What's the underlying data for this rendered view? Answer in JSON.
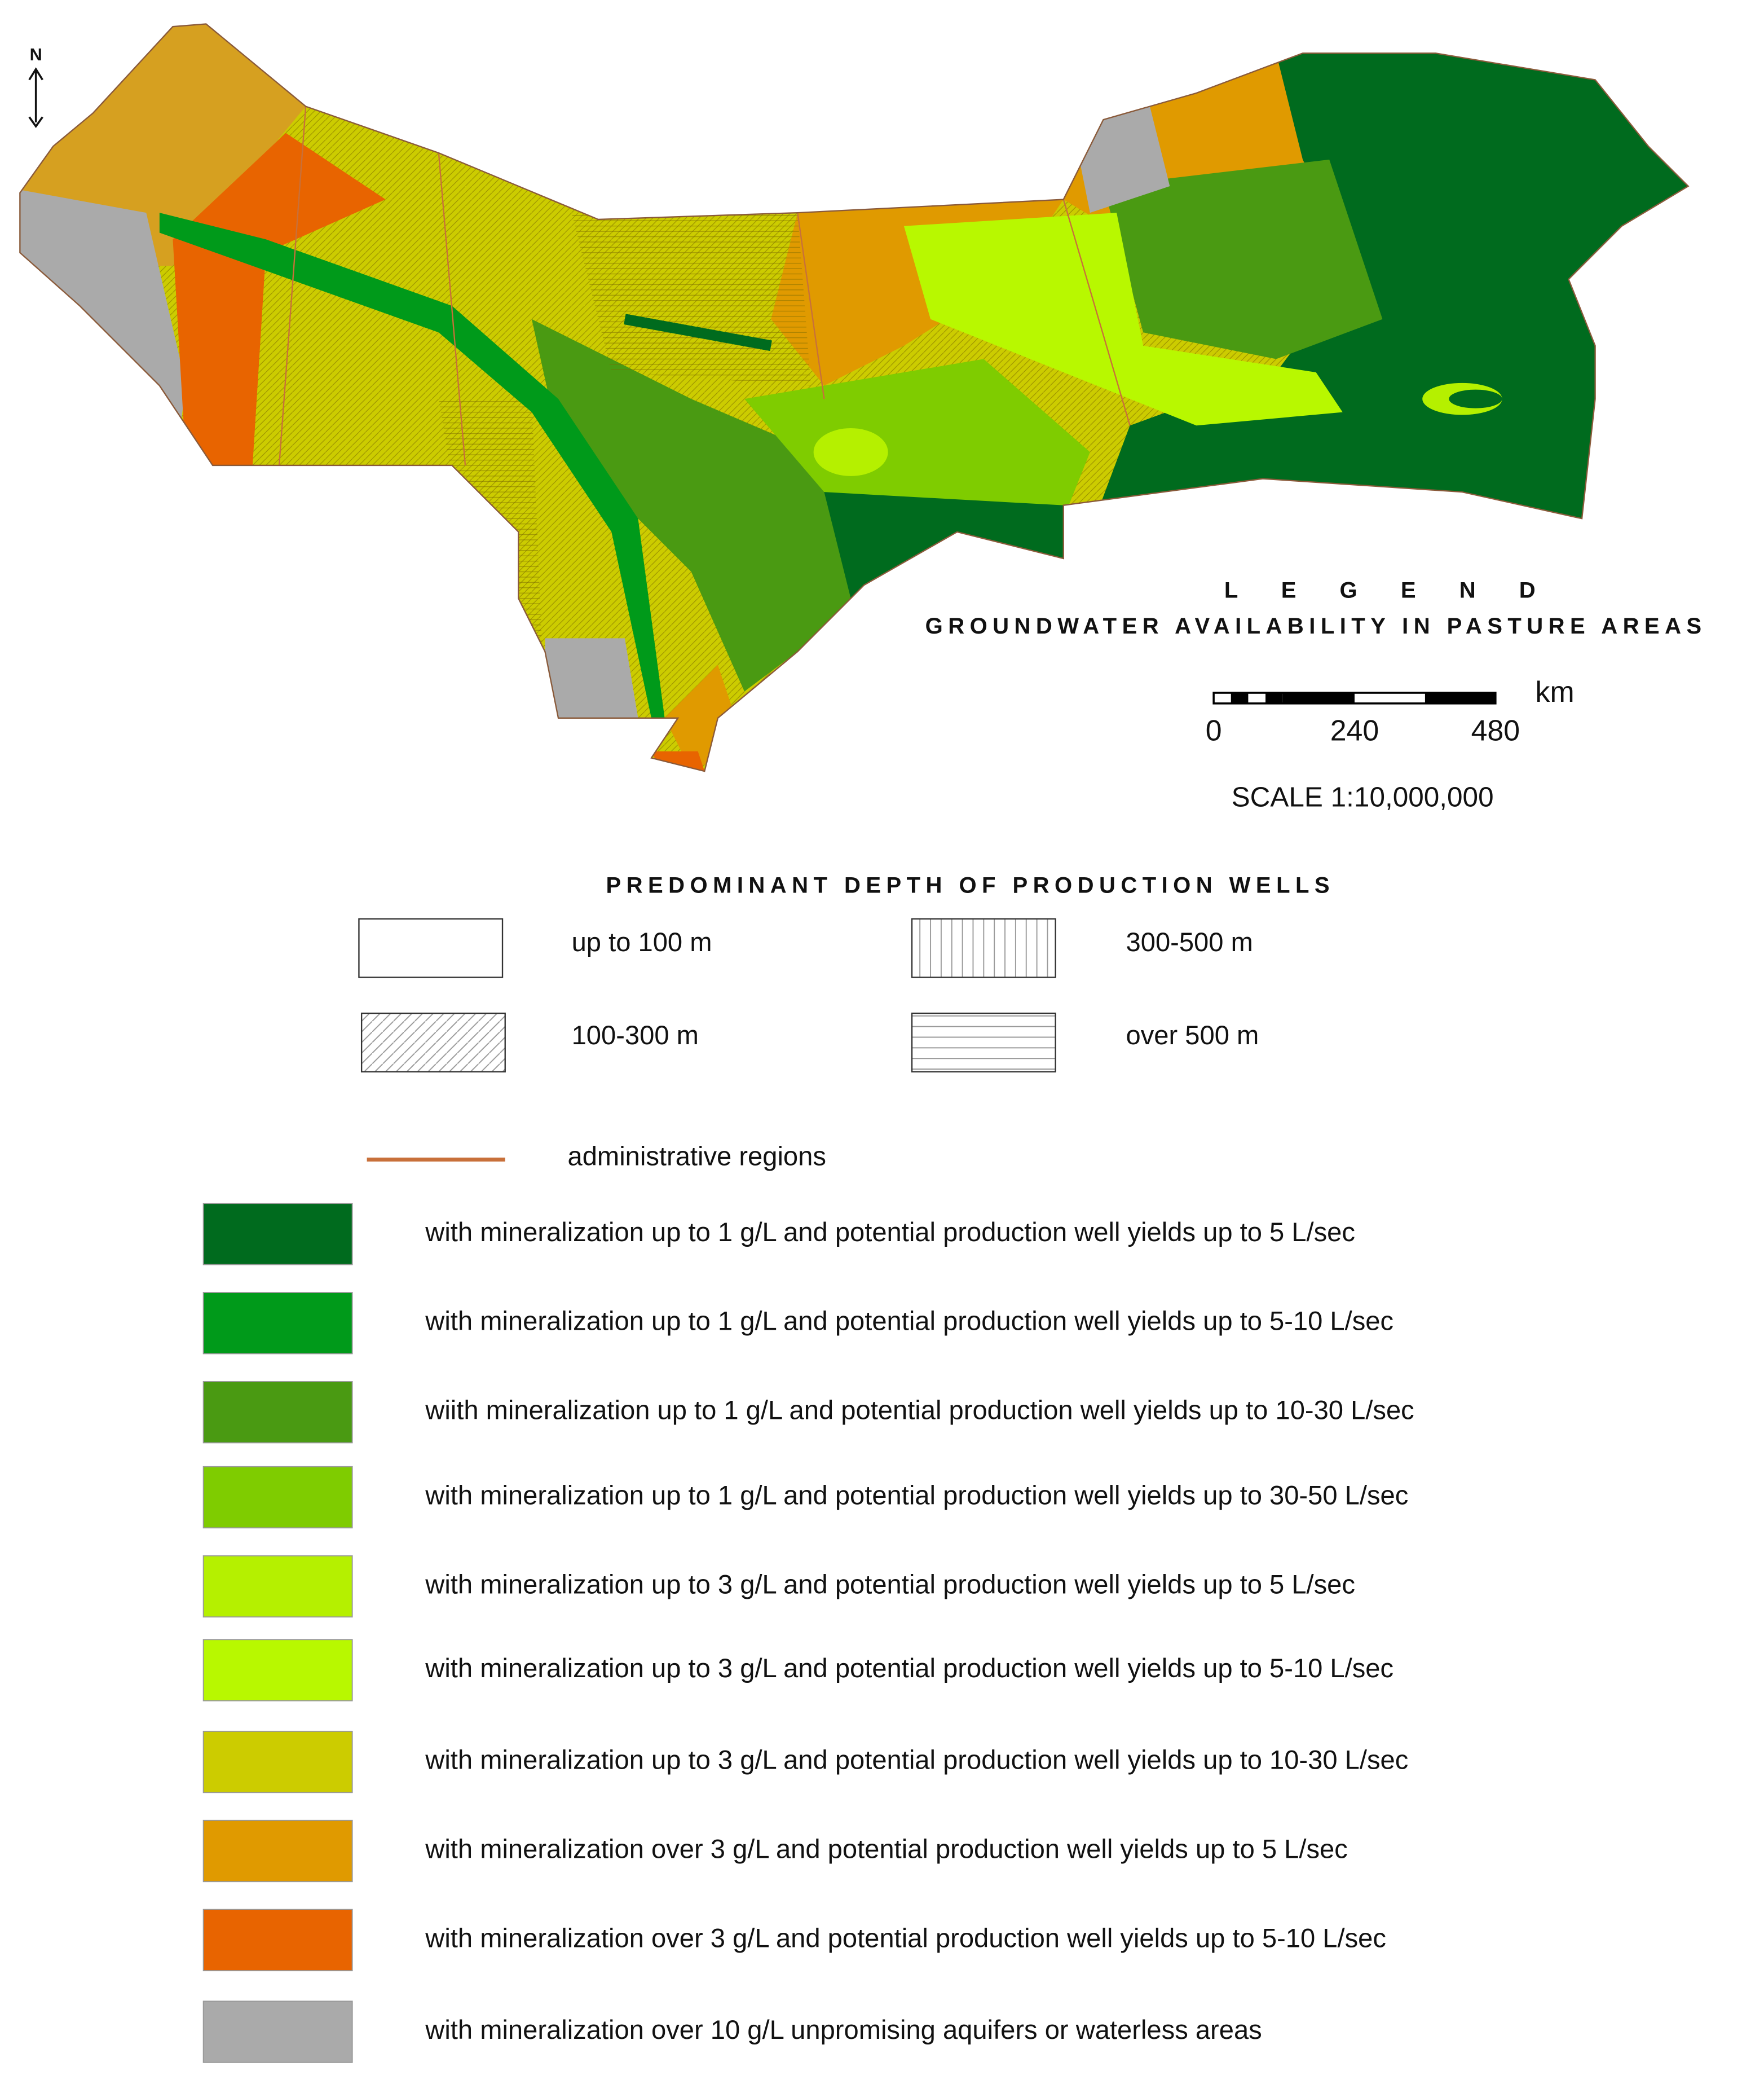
{
  "north": "N",
  "legend": {
    "title": "L E G E N D",
    "subtitle": "GROUNDWATER AVAILABILITY IN PASTURE AREAS"
  },
  "scale_bar": {
    "unit": "km",
    "ticks": [
      0,
      240,
      480
    ],
    "scale": "SCALE 1:10,000,000"
  },
  "depth": {
    "title": "PREDOMINANT DEPTH OF PRODUCTION WELLS",
    "items": [
      "up to 100 m",
      "300-500 m",
      "100-300 m",
      "over 500 m"
    ]
  },
  "admin": {
    "label": "administrative regions",
    "color": "#c8703a"
  },
  "classes": [
    {
      "label": "with mineralization up to 1 g/L and potential production well yields up to 5 L/sec",
      "color": "#006b1e"
    },
    {
      "label": "with mineralization up to 1 g/L and potential production well yields up to 5-10 L/sec",
      "color": "#009a1a"
    },
    {
      "label": "wiith mineralization up to 1 g/L and potential production well yields up to 10-30 L/sec",
      "color": "#4a9a12"
    },
    {
      "label": "with mineralization up to 1 g/L and potential production well yields up to 30-50 L/sec",
      "color": "#7fcc00"
    },
    {
      "label": "with mineralization up to 3 g/L and potential production well yields up to 5 L/sec",
      "color": "#b5f000"
    },
    {
      "label": "with mineralization up to 3 g/L and potential production well yields up to 5-10 L/sec",
      "color": "#b8f800"
    },
    {
      "label": "with mineralization up to 3 g/L and potential production well yields up to 10-30 L/sec",
      "color": "#cccc00"
    },
    {
      "label": "with mineralization over 3 g/L and potential production well yields up to 5 L/sec",
      "color": "#e09a00"
    },
    {
      "label": "with mineralization over 3 g/L and potential production well yields up to 5-10 L/sec",
      "color": "#e86400"
    },
    {
      "label": "with mineralization over 10 g/L unpromising aquifers  or  waterless areas",
      "color": "#aaaaaa"
    }
  ]
}
